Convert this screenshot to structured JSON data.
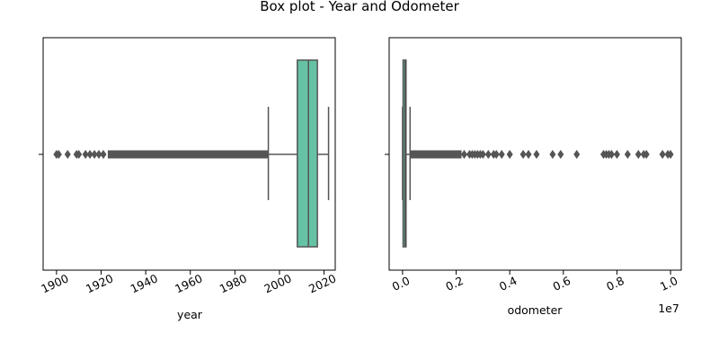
{
  "figure": {
    "title": "Box plot - Year and Odometer"
  },
  "chart_data": [
    {
      "type": "box",
      "xlabel": "year",
      "xlim": [
        1894,
        2025
      ],
      "xticks": [
        1900,
        1920,
        1940,
        1960,
        1980,
        2000,
        2020
      ],
      "tick_labels": [
        "1900",
        "1920",
        "1940",
        "1960",
        "1980",
        "2000",
        "2020"
      ],
      "tick_rotation_deg": 25,
      "box_color": "#66c2a5",
      "line_color": "#555555",
      "q1": 2008,
      "median": 2013,
      "q3": 2017,
      "whisker_low": 1995,
      "whisker_high": 2022,
      "outliers_dense_range": [
        1923,
        1995
      ],
      "outliers": [
        1900,
        1901,
        1905,
        1909,
        1910,
        1913,
        1915,
        1917,
        1919,
        1921
      ]
    },
    {
      "type": "box",
      "xlabel": "odometer",
      "offset_text": "1e7",
      "xlim": [
        -0.05,
        1.04
      ],
      "xticks": [
        0.0,
        0.2,
        0.4,
        0.6,
        0.8,
        1.0
      ],
      "tick_labels": [
        "0.0",
        "0.2",
        "0.4",
        "0.6",
        "0.8",
        "1.0"
      ],
      "tick_rotation_deg": 25,
      "box_color": "#66c2a5",
      "line_color": "#555555",
      "q1": 0.002,
      "median": 0.009,
      "q3": 0.013,
      "whisker_low": 0.0,
      "whisker_high": 0.028,
      "outliers_dense_range": [
        0.028,
        0.22
      ],
      "outliers": [
        0.23,
        0.25,
        0.26,
        0.27,
        0.28,
        0.29,
        0.3,
        0.32,
        0.34,
        0.35,
        0.37,
        0.4,
        0.45,
        0.47,
        0.5,
        0.56,
        0.59,
        0.65,
        0.75,
        0.76,
        0.77,
        0.78,
        0.8,
        0.84,
        0.88,
        0.9,
        0.91,
        0.97,
        0.99,
        1.0
      ]
    }
  ]
}
